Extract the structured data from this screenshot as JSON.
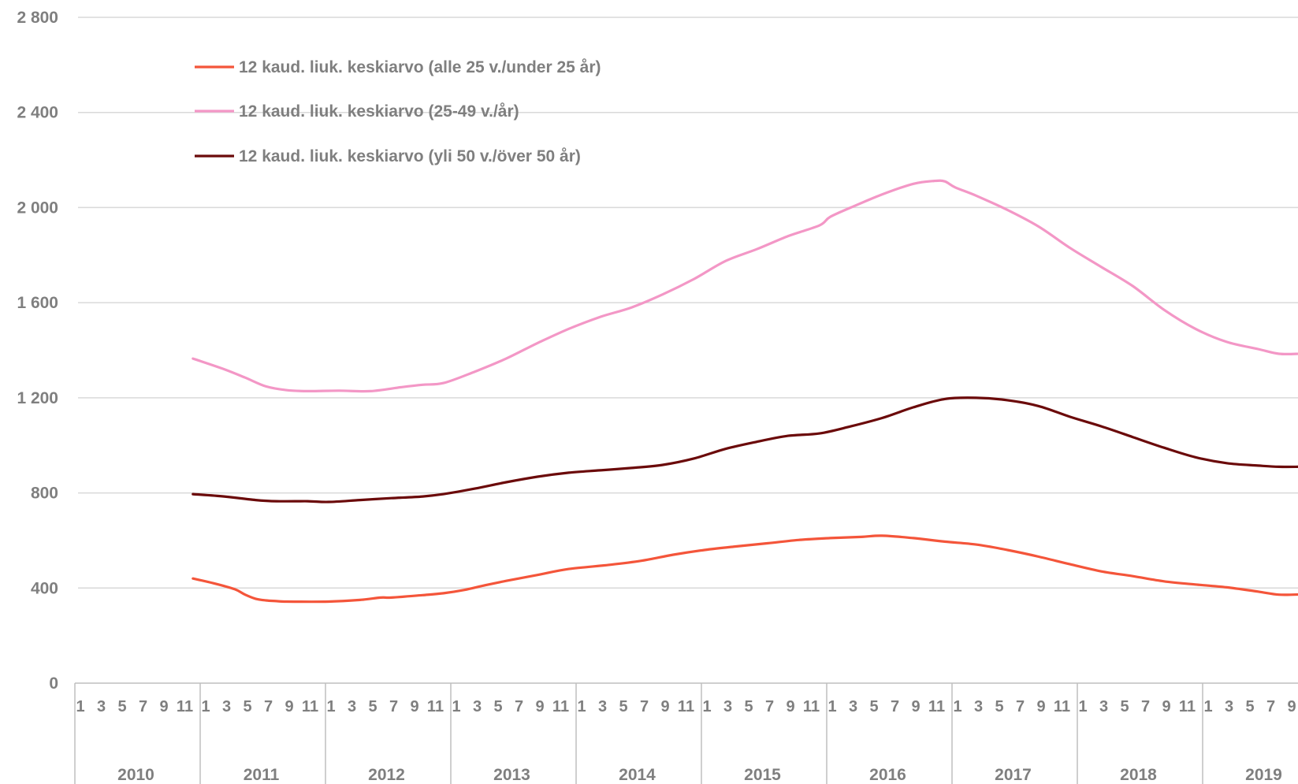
{
  "chart_data": {
    "type": "line",
    "title": "",
    "xlabel": "",
    "ylabel": "",
    "ylim": [
      0,
      2800
    ],
    "y_ticks": [
      0,
      400,
      800,
      1200,
      1600,
      2000,
      2400,
      2800
    ],
    "y_tick_labels": [
      "0",
      "400",
      "800",
      "1 200",
      "1 600",
      "2 000",
      "2 400",
      "2 800"
    ],
    "grid": true,
    "legend_position": "top-left",
    "x_month_labels": [
      "1",
      "3",
      "5",
      "7",
      "9",
      "11"
    ],
    "years": [
      "2010",
      "2011",
      "2012",
      "2013",
      "2014",
      "2015",
      "2016",
      "2017",
      "2018",
      "2019"
    ],
    "x_start": "2010-01",
    "series": [
      {
        "name": "12 kaud. liuk. keskiarvo (alle 25 v./under 25 år)",
        "color": "#f4553a",
        "start": "2010-12",
        "anchors": [
          [
            "2010-12",
            440
          ],
          [
            "2011-02",
            420
          ],
          [
            "2011-04",
            395
          ],
          [
            "2011-05",
            372
          ],
          [
            "2011-06",
            355
          ],
          [
            "2011-07",
            348
          ],
          [
            "2011-08",
            345
          ],
          [
            "2011-09",
            343
          ],
          [
            "2012-01",
            343
          ],
          [
            "2012-04",
            350
          ],
          [
            "2012-06",
            360
          ],
          [
            "2012-07",
            360
          ],
          [
            "2012-10",
            370
          ],
          [
            "2012-12",
            378
          ],
          [
            "2013-02",
            392
          ],
          [
            "2013-04",
            412
          ],
          [
            "2013-06",
            430
          ],
          [
            "2013-09",
            455
          ],
          [
            "2013-12",
            480
          ],
          [
            "2014-04",
            498
          ],
          [
            "2014-07",
            515
          ],
          [
            "2014-10",
            540
          ],
          [
            "2015-01",
            560
          ],
          [
            "2015-04",
            575
          ],
          [
            "2015-07",
            588
          ],
          [
            "2015-10",
            602
          ],
          [
            "2016-01",
            610
          ],
          [
            "2016-04",
            615
          ],
          [
            "2016-06",
            620
          ],
          [
            "2016-09",
            610
          ],
          [
            "2016-12",
            595
          ],
          [
            "2017-03",
            583
          ],
          [
            "2017-06",
            560
          ],
          [
            "2017-09",
            532
          ],
          [
            "2017-12",
            500
          ],
          [
            "2018-03",
            470
          ],
          [
            "2018-06",
            450
          ],
          [
            "2018-09",
            428
          ],
          [
            "2018-12",
            415
          ],
          [
            "2019-03",
            403
          ],
          [
            "2019-06",
            385
          ],
          [
            "2019-08",
            372
          ],
          [
            "2019-10",
            373
          ]
        ]
      },
      {
        "name": "12 kaud. liuk. keskiarvo (25-49 v./år)",
        "color": "#f397c6",
        "start": "2010-12",
        "anchors": [
          [
            "2010-12",
            1365
          ],
          [
            "2011-03",
            1320
          ],
          [
            "2011-05",
            1285
          ],
          [
            "2011-07",
            1248
          ],
          [
            "2011-09",
            1232
          ],
          [
            "2011-11",
            1228
          ],
          [
            "2012-02",
            1230
          ],
          [
            "2012-05",
            1228
          ],
          [
            "2012-08",
            1245
          ],
          [
            "2012-10",
            1255
          ],
          [
            "2012-12",
            1262
          ],
          [
            "2013-03",
            1310
          ],
          [
            "2013-06",
            1365
          ],
          [
            "2013-09",
            1430
          ],
          [
            "2013-12",
            1490
          ],
          [
            "2014-03",
            1540
          ],
          [
            "2014-06",
            1580
          ],
          [
            "2014-09",
            1635
          ],
          [
            "2014-12",
            1700
          ],
          [
            "2015-03",
            1775
          ],
          [
            "2015-06",
            1825
          ],
          [
            "2015-09",
            1880
          ],
          [
            "2015-12",
            1925
          ],
          [
            "2016-01",
            1960
          ],
          [
            "2016-03",
            2000
          ],
          [
            "2016-06",
            2055
          ],
          [
            "2016-09",
            2100
          ],
          [
            "2016-11",
            2112
          ],
          [
            "2016-12",
            2110
          ],
          [
            "2017-01",
            2085
          ],
          [
            "2017-03",
            2050
          ],
          [
            "2017-06",
            1990
          ],
          [
            "2017-09",
            1920
          ],
          [
            "2017-12",
            1830
          ],
          [
            "2018-03",
            1750
          ],
          [
            "2018-06",
            1670
          ],
          [
            "2018-09",
            1570
          ],
          [
            "2018-12",
            1490
          ],
          [
            "2019-03",
            1435
          ],
          [
            "2019-06",
            1405
          ],
          [
            "2019-08",
            1385
          ],
          [
            "2019-10",
            1385
          ]
        ]
      },
      {
        "name": "12 kaud. liuk. keskiarvo (yli 50 v./över 50 år)",
        "color": "#6b0a0a",
        "start": "2010-12",
        "anchors": [
          [
            "2010-12",
            795
          ],
          [
            "2011-03",
            785
          ],
          [
            "2011-06",
            770
          ],
          [
            "2011-08",
            765
          ],
          [
            "2011-11",
            765
          ],
          [
            "2012-01",
            762
          ],
          [
            "2012-04",
            770
          ],
          [
            "2012-07",
            778
          ],
          [
            "2012-10",
            785
          ],
          [
            "2012-12",
            795
          ],
          [
            "2013-03",
            818
          ],
          [
            "2013-06",
            845
          ],
          [
            "2013-09",
            868
          ],
          [
            "2013-12",
            885
          ],
          [
            "2014-03",
            895
          ],
          [
            "2014-06",
            905
          ],
          [
            "2014-09",
            918
          ],
          [
            "2014-12",
            945
          ],
          [
            "2015-03",
            985
          ],
          [
            "2015-06",
            1015
          ],
          [
            "2015-09",
            1040
          ],
          [
            "2015-12",
            1050
          ],
          [
            "2016-03",
            1080
          ],
          [
            "2016-06",
            1115
          ],
          [
            "2016-09",
            1160
          ],
          [
            "2016-12",
            1195
          ],
          [
            "2017-03",
            1200
          ],
          [
            "2017-06",
            1190
          ],
          [
            "2017-09",
            1165
          ],
          [
            "2017-12",
            1120
          ],
          [
            "2018-03",
            1080
          ],
          [
            "2018-06",
            1035
          ],
          [
            "2018-09",
            990
          ],
          [
            "2018-12",
            950
          ],
          [
            "2019-03",
            925
          ],
          [
            "2019-06",
            915
          ],
          [
            "2019-08",
            910
          ],
          [
            "2019-10",
            910
          ]
        ]
      }
    ]
  }
}
